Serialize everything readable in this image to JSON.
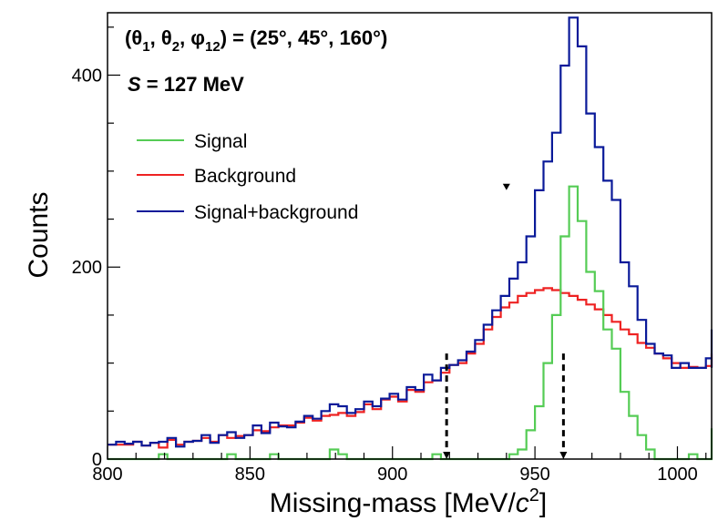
{
  "chart_data": {
    "type": "histogram",
    "xlabel": "Missing-mass [MeV/c²]",
    "xlabel_parts": {
      "prefix": "Missing-mass [MeV/",
      "italic": "c",
      "sup": "2",
      "suffix": "]"
    },
    "ylabel": "Counts",
    "xlim": [
      800,
      1012
    ],
    "ylim": [
      0,
      465
    ],
    "bin_width": 3,
    "x_start": 800,
    "xticks": [
      800,
      850,
      900,
      950,
      1000
    ],
    "yticks": [
      0,
      200,
      400
    ],
    "annotations": {
      "angles": {
        "prefix": "(",
        "t1": "θ",
        "t1sub": "1",
        "sep1": ", ",
        "t2": "θ",
        "t2sub": "2",
        "sep2": ", ",
        "p": "φ",
        "psub": "12",
        "rest": ") = (25°, 45°, 160°)"
      },
      "s_label": {
        "var": "S",
        "rest": " = 127 MeV"
      }
    },
    "cut_lines": [
      919,
      960
    ],
    "cut_line_top": 110,
    "peak_marker": {
      "x": 940,
      "y": 284
    },
    "series": [
      {
        "name": "Signal",
        "color": "#55cc55",
        "values": [
          0,
          0,
          0,
          0,
          0,
          0,
          5,
          0,
          0,
          0,
          0,
          0,
          0,
          0,
          5,
          0,
          0,
          0,
          0,
          5,
          0,
          0,
          0,
          0,
          0,
          0,
          10,
          5,
          0,
          0,
          0,
          0,
          0,
          0,
          0,
          0,
          0,
          0,
          5,
          0,
          0,
          0,
          0,
          0,
          0,
          0,
          0,
          5,
          10,
          30,
          55,
          100,
          150,
          232,
          284,
          248,
          195,
          175,
          135,
          115,
          70,
          45,
          25,
          10,
          0,
          0,
          0,
          0,
          5,
          0,
          0,
          5,
          12,
          5,
          0,
          0,
          5,
          0,
          8,
          0,
          0,
          12,
          32,
          15,
          0,
          0,
          12,
          8,
          10,
          5,
          3
        ]
      },
      {
        "name": "Background",
        "color": "#ee2222",
        "values": [
          15,
          15,
          15,
          18,
          14,
          17,
          12,
          20,
          15,
          18,
          19,
          22,
          18,
          25,
          22,
          24,
          25,
          30,
          29,
          33,
          35,
          35,
          38,
          43,
          40,
          45,
          46,
          48,
          45,
          49,
          57,
          52,
          62,
          65,
          60,
          72,
          70,
          80,
          82,
          90,
          98,
          100,
          110,
          120,
          135,
          148,
          158,
          163,
          170,
          173,
          176,
          178,
          176,
          173,
          170,
          166,
          161,
          156,
          150,
          143,
          135,
          130,
          121,
          116,
          110,
          105,
          100,
          95,
          96,
          95,
          97,
          99,
          101,
          103,
          104,
          106,
          107,
          108,
          109,
          109,
          109,
          109,
          109,
          110,
          110,
          108,
          108,
          108,
          107,
          106,
          105
        ]
      },
      {
        "name": "Signal+background",
        "color": "#0a1a99",
        "values": [
          15,
          18,
          16,
          18,
          14,
          17,
          18,
          22,
          13,
          18,
          19,
          25,
          17,
          25,
          28,
          22,
          25,
          35,
          27,
          38,
          34,
          33,
          39,
          45,
          42,
          50,
          57,
          55,
          48,
          52,
          60,
          55,
          63,
          68,
          62,
          75,
          72,
          88,
          82,
          95,
          98,
          103,
          112,
          124,
          140,
          155,
          170,
          188,
          205,
          232,
          280,
          310,
          340,
          410,
          460,
          430,
          360,
          325,
          290,
          270,
          205,
          180,
          145,
          120,
          110,
          108,
          95,
          100,
          95,
          95,
          105,
          103,
          104,
          95,
          100,
          105,
          118,
          103,
          110,
          135,
          115,
          115,
          125,
          120,
          105,
          120,
          110,
          112,
          108,
          103,
          105
        ]
      }
    ]
  }
}
